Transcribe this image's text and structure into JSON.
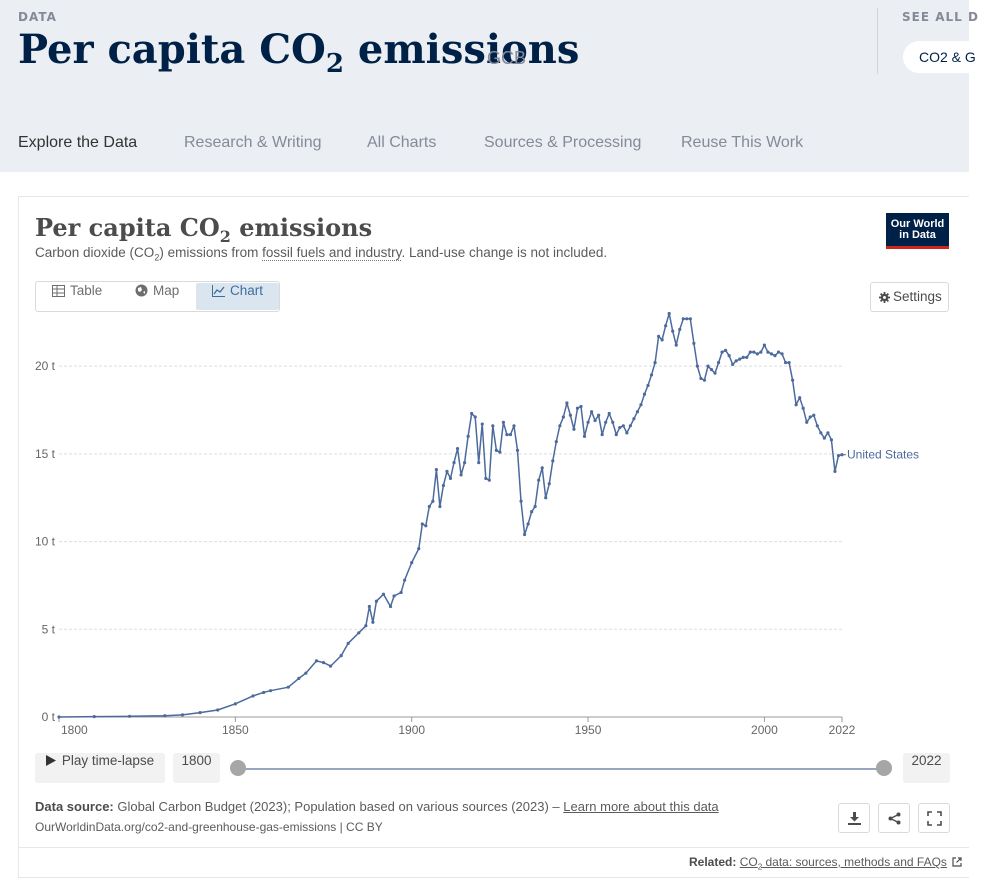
{
  "header": {
    "eyebrow": "DATA",
    "title_main": "Per capita CO",
    "title_sub": "2",
    "title_end": " emissions",
    "source_tag": "GCB",
    "see_all": "SEE ALL D",
    "pill": "CO2 & G"
  },
  "nav": {
    "items": [
      "Explore the Data",
      "Research & Writing",
      "All Charts",
      "Sources & Processing",
      "Reuse This Work"
    ],
    "active": "Explore the Data"
  },
  "chart_header": {
    "title_main": "Per capita CO",
    "title_sub": "2",
    "title_end": " emissions",
    "subtitle_a": "Carbon dioxide (CO",
    "subtitle_sub": "2",
    "subtitle_b": ") emissions from ",
    "subtitle_link": "fossil fuels and industry",
    "subtitle_c": ". Land-use change is not included.",
    "logo_line1": "Our World",
    "logo_line2": "in Data"
  },
  "tabs": {
    "table": "Table",
    "map": "Map",
    "chart": "Chart",
    "active": "Chart",
    "settings": "Settings"
  },
  "colors": {
    "series": "#4c6a9c",
    "title": "#002147",
    "accent_red": "#ce261e"
  },
  "icons": {
    "table": "table-icon",
    "map": "globe-icon",
    "chart": "line-chart-icon",
    "settings": "gear-icon",
    "play": "play-icon",
    "download": "download-icon",
    "share": "share-icon",
    "fullscreen": "fullscreen-icon",
    "external": "external-link-icon"
  },
  "chart_data": {
    "type": "line",
    "title": "Per capita CO₂ emissions",
    "xlabel": "",
    "ylabel": "",
    "x_range": [
      1800,
      2022
    ],
    "ylim": [
      0,
      23
    ],
    "y_ticks": [
      0,
      5,
      10,
      15,
      20
    ],
    "y_tick_labels": [
      "0 t",
      "5 t",
      "10 t",
      "15 t",
      "20 t"
    ],
    "x_ticks": [
      1800,
      1850,
      1900,
      1950,
      2000,
      2022
    ],
    "grid": "horizontal",
    "legend": "end-of-line label",
    "series": [
      {
        "name": "United States",
        "points": [
          [
            1800,
            0.0
          ],
          [
            1810,
            0.02
          ],
          [
            1820,
            0.04
          ],
          [
            1830,
            0.07
          ],
          [
            1835,
            0.12
          ],
          [
            1840,
            0.25
          ],
          [
            1845,
            0.4
          ],
          [
            1850,
            0.75
          ],
          [
            1855,
            1.2
          ],
          [
            1858,
            1.4
          ],
          [
            1860,
            1.5
          ],
          [
            1865,
            1.7
          ],
          [
            1868,
            2.2
          ],
          [
            1870,
            2.5
          ],
          [
            1873,
            3.2
          ],
          [
            1875,
            3.1
          ],
          [
            1877,
            2.9
          ],
          [
            1880,
            3.5
          ],
          [
            1882,
            4.2
          ],
          [
            1885,
            4.8
          ],
          [
            1887,
            5.2
          ],
          [
            1888,
            6.3
          ],
          [
            1889,
            5.4
          ],
          [
            1890,
            6.6
          ],
          [
            1892,
            7.0
          ],
          [
            1894,
            6.3
          ],
          [
            1895,
            6.9
          ],
          [
            1897,
            7.1
          ],
          [
            1898,
            7.8
          ],
          [
            1900,
            8.8
          ],
          [
            1902,
            9.6
          ],
          [
            1903,
            11.0
          ],
          [
            1904,
            10.9
          ],
          [
            1905,
            12.0
          ],
          [
            1906,
            12.3
          ],
          [
            1907,
            14.1
          ],
          [
            1908,
            12.0
          ],
          [
            1909,
            13.2
          ],
          [
            1910,
            14.0
          ],
          [
            1911,
            13.6
          ],
          [
            1912,
            14.5
          ],
          [
            1913,
            15.3
          ],
          [
            1914,
            13.8
          ],
          [
            1915,
            14.5
          ],
          [
            1916,
            16.0
          ],
          [
            1917,
            17.3
          ],
          [
            1918,
            17.1
          ],
          [
            1919,
            14.5
          ],
          [
            1920,
            16.7
          ],
          [
            1921,
            13.6
          ],
          [
            1922,
            13.5
          ],
          [
            1923,
            16.6
          ],
          [
            1924,
            15.2
          ],
          [
            1925,
            15.1
          ],
          [
            1926,
            16.8
          ],
          [
            1927,
            16.1
          ],
          [
            1928,
            16.1
          ],
          [
            1929,
            16.6
          ],
          [
            1930,
            15.2
          ],
          [
            1931,
            12.3
          ],
          [
            1932,
            10.4
          ],
          [
            1933,
            11.0
          ],
          [
            1934,
            11.7
          ],
          [
            1935,
            12.0
          ],
          [
            1936,
            13.5
          ],
          [
            1937,
            14.2
          ],
          [
            1938,
            12.5
          ],
          [
            1939,
            13.3
          ],
          [
            1940,
            14.6
          ],
          [
            1941,
            15.7
          ],
          [
            1942,
            16.6
          ],
          [
            1943,
            17.1
          ],
          [
            1944,
            17.9
          ],
          [
            1945,
            17.2
          ],
          [
            1946,
            16.4
          ],
          [
            1947,
            17.6
          ],
          [
            1948,
            17.7
          ],
          [
            1949,
            16.0
          ],
          [
            1950,
            16.8
          ],
          [
            1951,
            17.4
          ],
          [
            1952,
            16.9
          ],
          [
            1953,
            17.2
          ],
          [
            1954,
            16.1
          ],
          [
            1955,
            16.8
          ],
          [
            1956,
            17.3
          ],
          [
            1957,
            16.8
          ],
          [
            1958,
            16.1
          ],
          [
            1959,
            16.5
          ],
          [
            1960,
            16.6
          ],
          [
            1961,
            16.2
          ],
          [
            1962,
            16.6
          ],
          [
            1963,
            17.0
          ],
          [
            1964,
            17.4
          ],
          [
            1965,
            17.8
          ],
          [
            1966,
            18.4
          ],
          [
            1967,
            18.9
          ],
          [
            1968,
            19.5
          ],
          [
            1969,
            20.2
          ],
          [
            1970,
            21.7
          ],
          [
            1971,
            21.5
          ],
          [
            1972,
            22.3
          ],
          [
            1973,
            23.0
          ],
          [
            1974,
            22.0
          ],
          [
            1975,
            21.2
          ],
          [
            1976,
            22.1
          ],
          [
            1977,
            22.7
          ],
          [
            1978,
            22.7
          ],
          [
            1979,
            22.7
          ],
          [
            1980,
            21.3
          ],
          [
            1981,
            20.0
          ],
          [
            1982,
            19.3
          ],
          [
            1983,
            19.2
          ],
          [
            1984,
            20.0
          ],
          [
            1985,
            19.8
          ],
          [
            1986,
            19.6
          ],
          [
            1987,
            20.2
          ],
          [
            1988,
            20.8
          ],
          [
            1989,
            20.9
          ],
          [
            1990,
            20.6
          ],
          [
            1991,
            20.1
          ],
          [
            1992,
            20.3
          ],
          [
            1993,
            20.4
          ],
          [
            1994,
            20.5
          ],
          [
            1995,
            20.5
          ],
          [
            1996,
            20.8
          ],
          [
            1997,
            20.8
          ],
          [
            1998,
            20.7
          ],
          [
            1999,
            20.8
          ],
          [
            2000,
            21.2
          ],
          [
            2001,
            20.8
          ],
          [
            2002,
            20.7
          ],
          [
            2003,
            20.6
          ],
          [
            2004,
            20.8
          ],
          [
            2005,
            20.7
          ],
          [
            2006,
            20.2
          ],
          [
            2007,
            20.2
          ],
          [
            2008,
            19.2
          ],
          [
            2009,
            17.8
          ],
          [
            2010,
            18.2
          ],
          [
            2011,
            17.6
          ],
          [
            2012,
            16.8
          ],
          [
            2013,
            17.1
          ],
          [
            2014,
            17.2
          ],
          [
            2015,
            16.6
          ],
          [
            2016,
            16.2
          ],
          [
            2017,
            15.9
          ],
          [
            2018,
            16.2
          ],
          [
            2019,
            15.8
          ],
          [
            2020,
            14.0
          ],
          [
            2021,
            14.9
          ],
          [
            2022,
            14.95
          ]
        ]
      }
    ]
  },
  "timeline": {
    "play_label": "Play time-lapse",
    "start_label": "1800",
    "end_label": "2022"
  },
  "footer": {
    "source_label": "Data source:",
    "source_text": " Global Carbon Budget (2023); Population based on various sources (2023) – ",
    "source_link": "Learn more about this data",
    "url_line": "OurWorldinData.org/co2-and-greenhouse-gas-emissions | CC BY",
    "related_label": "Related:",
    "related_link_a": "CO",
    "related_link_sub": "2",
    "related_link_b": " data: sources, methods and FAQs"
  }
}
